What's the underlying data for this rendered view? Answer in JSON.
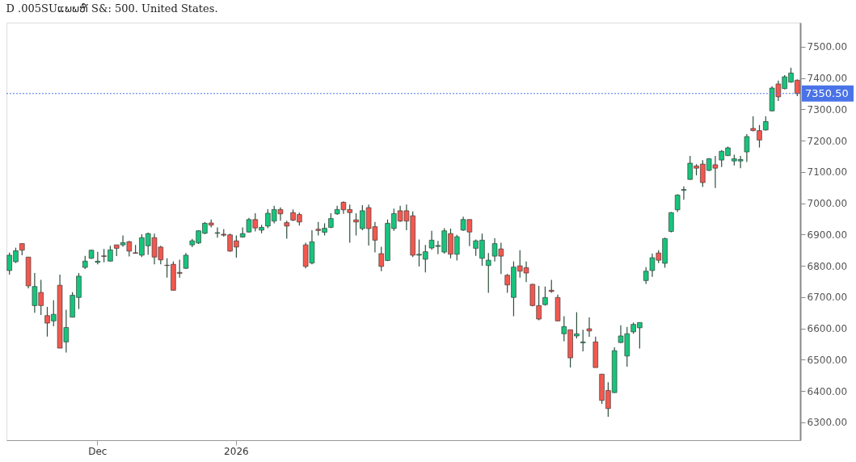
{
  "chart_data": {
    "type": "candlestick",
    "title": "D .005SUແພພຫ໌ S&: 500. United States.",
    "categories": [
      null,
      null,
      null,
      null,
      null,
      null,
      null,
      null,
      null,
      null,
      null,
      null,
      null,
      null,
      "Dec",
      null,
      null,
      null,
      null,
      null,
      null,
      null,
      null,
      null,
      null,
      null,
      null,
      null,
      null,
      null,
      null,
      null,
      null,
      null,
      null,
      null,
      "2026",
      null,
      null,
      null,
      null,
      null,
      null,
      null,
      null,
      null,
      null,
      null,
      null,
      null,
      null,
      null,
      null,
      null,
      null,
      null,
      null,
      null,
      null,
      null,
      null,
      null,
      null,
      null,
      null,
      null,
      null,
      null,
      null,
      null,
      null,
      null,
      null,
      null,
      null,
      null,
      null,
      null,
      null,
      null,
      null,
      null,
      null,
      null,
      null,
      null,
      null,
      null,
      null,
      null,
      null,
      null,
      null,
      null,
      null,
      null,
      null,
      null,
      null,
      null,
      null,
      null,
      null,
      null,
      null,
      null,
      null,
      null,
      null,
      null,
      null,
      null,
      null,
      null,
      null,
      null,
      null,
      null,
      null,
      null,
      null,
      null,
      null,
      null,
      null,
      null
    ],
    "ohlc": [
      [
        6785,
        6842,
        6772,
        6834
      ],
      [
        6813,
        6858,
        6809,
        6848
      ],
      [
        6871,
        6871,
        6834,
        6850
      ],
      [
        6828,
        6828,
        6728,
        6736
      ],
      [
        6673,
        6777,
        6650,
        6734
      ],
      [
        6715,
        6755,
        6643,
        6673
      ],
      [
        6641,
        6669,
        6574,
        6617
      ],
      [
        6624,
        6690,
        6607,
        6645
      ],
      [
        6738,
        6772,
        6537,
        6537
      ],
      [
        6557,
        6660,
        6523,
        6603
      ],
      [
        6636,
        6716,
        6635,
        6706
      ],
      [
        6699,
        6777,
        6662,
        6767
      ],
      [
        6795,
        6832,
        6790,
        6815
      ],
      [
        6824,
        6851,
        6822,
        6850
      ],
      [
        6811,
        6845,
        6805,
        6815
      ],
      [
        6832,
        6854,
        6811,
        6830
      ],
      [
        6815,
        6864,
        6814,
        6851
      ],
      [
        6867,
        6867,
        6831,
        6856
      ],
      [
        6867,
        6897,
        6861,
        6874
      ],
      [
        6877,
        6880,
        6830,
        6847
      ],
      [
        6842,
        6867,
        6839,
        6840
      ],
      [
        6834,
        6901,
        6828,
        6890
      ],
      [
        6864,
        6906,
        6835,
        6903
      ],
      [
        6890,
        6903,
        6805,
        6828
      ],
      [
        6860,
        6864,
        6805,
        6819
      ],
      [
        6802,
        6824,
        6762,
        6801
      ],
      [
        6805,
        6814,
        6721,
        6722
      ],
      [
        6779,
        6820,
        6762,
        6776
      ],
      [
        6792,
        6841,
        6790,
        6834
      ],
      [
        6867,
        6886,
        6860,
        6880
      ],
      [
        6873,
        6914,
        6870,
        6912
      ],
      [
        6904,
        6940,
        6901,
        6936
      ],
      [
        6937,
        6948,
        6923,
        6930
      ],
      [
        6904,
        6923,
        6890,
        6906
      ],
      [
        6901,
        6917,
        6893,
        6898
      ],
      [
        6899,
        6903,
        6845,
        6847
      ],
      [
        6880,
        6897,
        6826,
        6860
      ],
      [
        6892,
        6923,
        6890,
        6903
      ],
      [
        6908,
        6953,
        6906,
        6948
      ],
      [
        6948,
        6968,
        6910,
        6921
      ],
      [
        6914,
        6931,
        6904,
        6923
      ],
      [
        6927,
        6981,
        6920,
        6968
      ],
      [
        6943,
        6992,
        6936,
        6980
      ],
      [
        6980,
        6987,
        6944,
        6966
      ],
      [
        6938,
        6944,
        6887,
        6927
      ],
      [
        6970,
        6980,
        6943,
        6946
      ],
      [
        6964,
        6970,
        6929,
        6940
      ],
      [
        6867,
        6874,
        6792,
        6798
      ],
      [
        6809,
        6914,
        6805,
        6877
      ],
      [
        6917,
        6940,
        6897,
        6913
      ],
      [
        6907,
        6936,
        6897,
        6920
      ],
      [
        6923,
        6968,
        6920,
        6951
      ],
      [
        6966,
        6992,
        6963,
        6980
      ],
      [
        7003,
        7006,
        6966,
        6979
      ],
      [
        6980,
        6996,
        6874,
        6970
      ],
      [
        6947,
        6968,
        6897,
        6940
      ],
      [
        6919,
        6994,
        6914,
        6976
      ],
      [
        6986,
        6996,
        6865,
        6919
      ],
      [
        6925,
        6940,
        6843,
        6882
      ],
      [
        6839,
        6861,
        6783,
        6798
      ],
      [
        6817,
        6948,
        6815,
        6936
      ],
      [
        6919,
        6983,
        6912,
        6967
      ],
      [
        6976,
        6992,
        6940,
        6943
      ],
      [
        6976,
        6996,
        6914,
        6943
      ],
      [
        6960,
        6974,
        6828,
        6834
      ],
      [
        6834,
        6884,
        6798,
        6837
      ],
      [
        6821,
        6867,
        6779,
        6845
      ],
      [
        6857,
        6912,
        6851,
        6882
      ],
      [
        6862,
        6880,
        6837,
        6865
      ],
      [
        6844,
        6920,
        6839,
        6912
      ],
      [
        6903,
        6919,
        6824,
        6837
      ],
      [
        6837,
        6899,
        6817,
        6893
      ],
      [
        6914,
        6957,
        6912,
        6948
      ],
      [
        6948,
        6948,
        6863,
        6908
      ],
      [
        6856,
        6884,
        6832,
        6880
      ],
      [
        6824,
        6903,
        6800,
        6882
      ],
      [
        6801,
        6841,
        6714,
        6818
      ],
      [
        6831,
        6888,
        6814,
        6871
      ],
      [
        6854,
        6874,
        6774,
        6831
      ],
      [
        6770,
        6774,
        6714,
        6739
      ],
      [
        6699,
        6814,
        6639,
        6796
      ],
      [
        6800,
        6850,
        6762,
        6783
      ],
      [
        6794,
        6814,
        6748,
        6777
      ],
      [
        6741,
        6742,
        6671,
        6673
      ],
      [
        6673,
        6736,
        6626,
        6630
      ],
      [
        6676,
        6734,
        6673,
        6699
      ],
      [
        6722,
        6755,
        6714,
        6718
      ],
      [
        6699,
        6708,
        6623,
        6624
      ],
      [
        6583,
        6639,
        6559,
        6606
      ],
      [
        6596,
        6596,
        6475,
        6506
      ],
      [
        6576,
        6652,
        6568,
        6583
      ],
      [
        6554,
        6596,
        6527,
        6557
      ],
      [
        6599,
        6635,
        6573,
        6592
      ],
      [
        6557,
        6574,
        6475,
        6475
      ],
      [
        6454,
        6454,
        6359,
        6370
      ],
      [
        6402,
        6428,
        6318,
        6344
      ],
      [
        6395,
        6540,
        6394,
        6529
      ],
      [
        6555,
        6610,
        6553,
        6576
      ],
      [
        6512,
        6605,
        6478,
        6583
      ],
      [
        6589,
        6619,
        6583,
        6613
      ],
      [
        6602,
        6619,
        6536,
        6619
      ],
      [
        6753,
        6796,
        6742,
        6783
      ],
      [
        6785,
        6839,
        6765,
        6826
      ],
      [
        6841,
        6850,
        6809,
        6818
      ],
      [
        6808,
        6890,
        6794,
        6887
      ],
      [
        6910,
        6972,
        6907,
        6970
      ],
      [
        6979,
        7029,
        6972,
        7026
      ],
      [
        7041,
        7054,
        7011,
        7044
      ],
      [
        7076,
        7151,
        7075,
        7128
      ],
      [
        7119,
        7125,
        7089,
        7112
      ],
      [
        7125,
        7138,
        7052,
        7066
      ],
      [
        7105,
        7144,
        7103,
        7142
      ],
      [
        7123,
        7151,
        7049,
        7112
      ],
      [
        7138,
        7170,
        7116,
        7166
      ],
      [
        7152,
        7181,
        7151,
        7177
      ],
      [
        7135,
        7155,
        7121,
        7142
      ],
      [
        7135,
        7151,
        7112,
        7140
      ],
      [
        7164,
        7221,
        7132,
        7213
      ],
      [
        7239,
        7278,
        7230,
        7232
      ],
      [
        7232,
        7250,
        7178,
        7202
      ],
      [
        7234,
        7278,
        7232,
        7261
      ],
      [
        7295,
        7374,
        7293,
        7368
      ],
      [
        7381,
        7392,
        7327,
        7340
      ],
      [
        7366,
        7409,
        7364,
        7404
      ],
      [
        7387,
        7433,
        7385,
        7416
      ],
      [
        7393,
        7396,
        7342,
        7350.5
      ]
    ],
    "colors": [
      "#17c47c",
      "#17c47c",
      "#f2584f",
      "#f2584f",
      "#17c47c",
      "#f2584f",
      "#f2584f",
      "#17c47c",
      "#f2584f",
      "#17c47c",
      "#17c47c",
      "#17c47c",
      "#17c47c",
      "#17c47c",
      "#17c47c",
      "#f2584f",
      "#17c47c",
      "#f2584f",
      "#17c47c",
      "#f2584f",
      "#f2584f",
      "#17c47c",
      "#17c47c",
      "#f2584f",
      "#f2584f",
      "#f2584f",
      "#f2584f",
      "#f2584f",
      "#17c47c",
      "#17c47c",
      "#17c47c",
      "#17c47c",
      "#f2584f",
      "#17c47c",
      "#f2584f",
      "#f2584f",
      "#f2584f",
      "#17c47c",
      "#17c47c",
      "#f2584f",
      "#17c47c",
      "#17c47c",
      "#17c47c",
      "#f2584f",
      "#f2584f",
      "#f2584f",
      "#f2584f",
      "#f2584f",
      "#17c47c",
      "#f2584f",
      "#17c47c",
      "#17c47c",
      "#17c47c",
      "#f2584f",
      "#f2584f",
      "#f2584f",
      "#17c47c",
      "#f2584f",
      "#f2584f",
      "#f2584f",
      "#17c47c",
      "#17c47c",
      "#f2584f",
      "#f2584f",
      "#f2584f",
      "#17c47c",
      "#17c47c",
      "#17c47c",
      "#17c47c",
      "#17c47c",
      "#f2584f",
      "#17c47c",
      "#17c47c",
      "#f2584f",
      "#17c47c",
      "#17c47c",
      "#17c47c",
      "#17c47c",
      "#f2584f",
      "#f2584f",
      "#17c47c",
      "#f2584f",
      "#f2584f",
      "#f2584f",
      "#f2584f",
      "#17c47c",
      "#f2584f",
      "#f2584f",
      "#17c47c",
      "#f2584f",
      "#17c47c",
      "#17c47c",
      "#f2584f",
      "#f2584f",
      "#f2584f",
      "#f2584f",
      "#17c47c",
      "#17c47c",
      "#17c47c",
      "#17c47c",
      "#17c47c",
      "#17c47c",
      "#17c47c",
      "#f2584f",
      "#17c47c",
      "#17c47c",
      "#17c47c",
      "#17c47c",
      "#17c47c",
      "#f2584f",
      "#f2584f",
      "#17c47c",
      "#f2584f",
      "#17c47c",
      "#17c47c",
      "#17c47c",
      "#17c47c",
      "#17c47c",
      "#f2584f",
      "#f2584f",
      "#17c47c",
      "#17c47c",
      "#f2584f",
      "#17c47c",
      "#17c47c",
      "#f2584f"
    ],
    "ylim": [
      6243,
      7577
    ],
    "yticks": [
      {
        "value": 6300,
        "label": "6300.00"
      },
      {
        "value": 6400,
        "label": "6400.00"
      },
      {
        "value": 6500,
        "label": "6500.00"
      },
      {
        "value": 6600,
        "label": "6600.00"
      },
      {
        "value": 6700,
        "label": "6700.00"
      },
      {
        "value": 6800,
        "label": "6800.00"
      },
      {
        "value": 6900,
        "label": "6900.00"
      },
      {
        "value": 7000,
        "label": "7000.00"
      },
      {
        "value": 7100,
        "label": "7100.00"
      },
      {
        "value": 7200,
        "label": "7200.00"
      },
      {
        "value": 7300,
        "label": "7300.00"
      },
      {
        "value": 7400,
        "label": "7400.00"
      },
      {
        "value": 7500,
        "label": "7500.00"
      }
    ],
    "ref_lines": [
      {
        "axis": "y",
        "value": 7350.5,
        "label": "7350.50",
        "color": "#4a73e8",
        "line_style": "dotted"
      }
    ],
    "grid": false
  }
}
